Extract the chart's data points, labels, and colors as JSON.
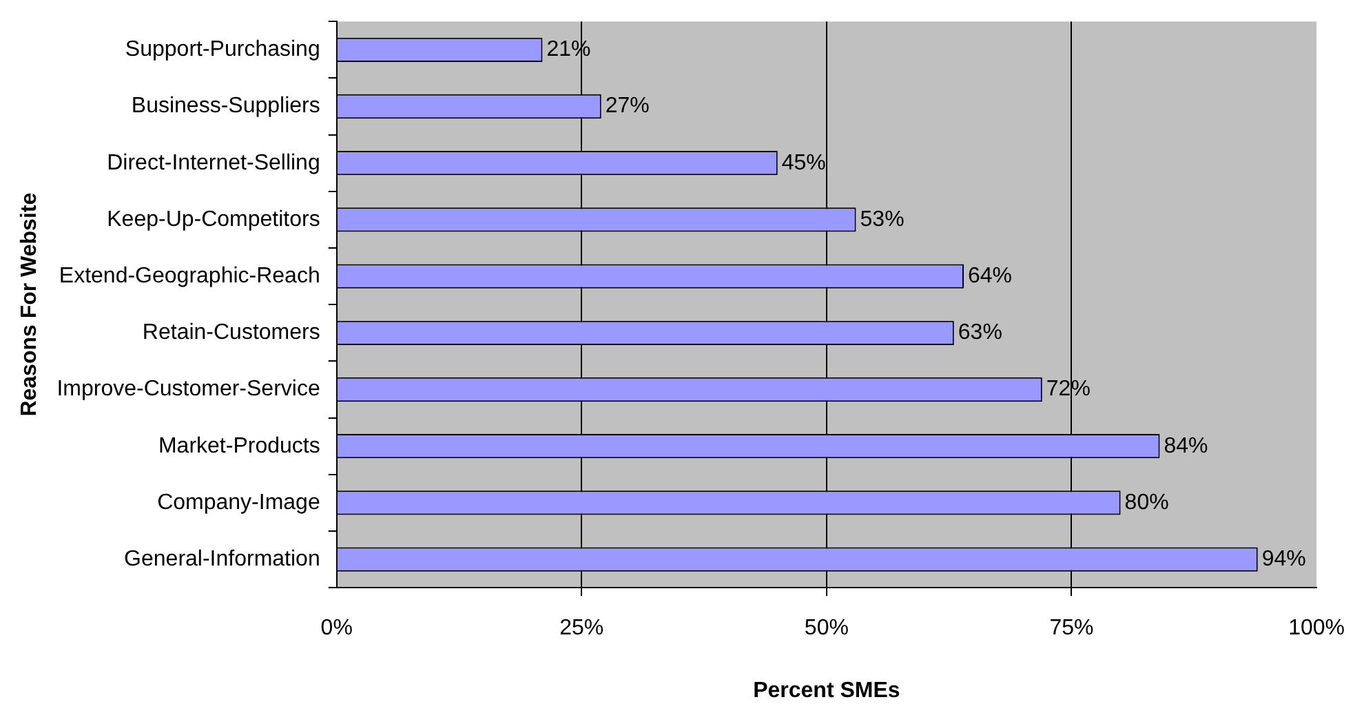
{
  "chart_data": {
    "type": "bar",
    "orientation": "horizontal",
    "xlabel": "Percent SMEs",
    "ylabel": "Reasons For Website",
    "categories": [
      "Support-Purchasing",
      "Business-Suppliers",
      "Direct-Internet-Selling",
      "Keep-Up-Competitors",
      "Extend-Geographic-Reach",
      "Retain-Customers",
      "Improve-Customer-Service",
      "Market-Products",
      "Company-Image",
      "General-Information"
    ],
    "values": [
      21,
      27,
      45,
      53,
      64,
      63,
      72,
      84,
      80,
      94
    ],
    "value_labels": [
      "21%",
      "27%",
      "45%",
      "53%",
      "64%",
      "63%",
      "72%",
      "84%",
      "80%",
      "94%"
    ],
    "color": "#9999ff",
    "xlim": [
      0,
      100
    ],
    "xticks": [
      {
        "value": 0,
        "label": "0%"
      },
      {
        "value": 25,
        "label": "25%"
      },
      {
        "value": 50,
        "label": "50%"
      },
      {
        "value": 75,
        "label": "75%"
      },
      {
        "value": 100,
        "label": "100%"
      }
    ],
    "grid": "x",
    "legend": false
  }
}
